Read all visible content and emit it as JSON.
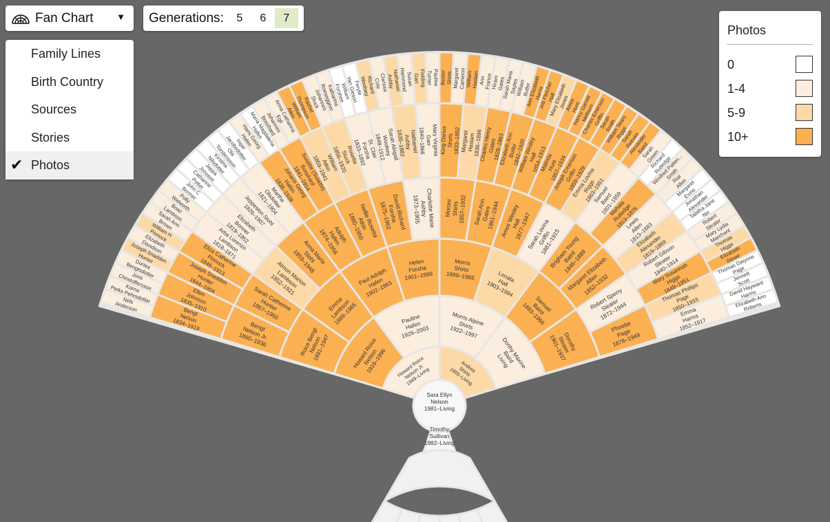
{
  "toolbar": {
    "chart_icon": "fan-chart-icon",
    "chart_label": "Fan Chart",
    "caret": "▼",
    "generations_label": "Generations:",
    "generation_options": [
      "5",
      "6",
      "7"
    ],
    "selected_generation": "7"
  },
  "menu": {
    "items": [
      {
        "label": "Family Lines",
        "active": false
      },
      {
        "label": "Birth Country",
        "active": false
      },
      {
        "label": "Sources",
        "active": false
      },
      {
        "label": "Stories",
        "active": false
      },
      {
        "label": "Photos",
        "active": true
      }
    ],
    "check": "✔"
  },
  "legend": {
    "title": "Photos",
    "items": [
      {
        "label": "0",
        "color": "#ffffff"
      },
      {
        "label": "1-4",
        "color": "#fbeede"
      },
      {
        "label": "5-9",
        "color": "#fcd9a6"
      },
      {
        "label": "10+",
        "color": "#fbb052"
      }
    ]
  },
  "colors": {
    "background": "#676767",
    "empty": "#f1f1f1",
    "separator": "#e8e6e3"
  },
  "fan": {
    "root": {
      "name": "Sara Ellyn\nNelson",
      "dates": "1981–Living"
    },
    "spouse": {
      "name": "Timothy\nSullivan",
      "dates": "1982–Living"
    },
    "rings": [
      [
        {
          "name": "Howard Roice\nNelson Jr.",
          "dates": "1949–Living",
          "photos": 1
        },
        {
          "name": "Andrea\nShirts",
          "dates": "1955–Living",
          "photos": 2
        }
      ],
      [
        {
          "name": "Howard Roice\nNelson",
          "dates": "1916–1996",
          "photos": 3
        },
        {
          "name": "Pauline\nHafen",
          "dates": "1929–2003",
          "photos": 1
        },
        {
          "name": "Morris Alpine\nShirts",
          "dates": "1922–1997",
          "photos": 1
        },
        {
          "name": "Dorthy Maxine\nBaird",
          "dates": "Living",
          "photos": 1
        }
      ],
      [
        {
          "name": "Roice Bengt\nNelson",
          "dates": "1891–1947",
          "photos": 3
        },
        {
          "name": "Emma\nLambson",
          "dates": "1889–1965",
          "photos": 3
        },
        {
          "name": "Paul Adolph\nHafen",
          "dates": "1902–1963",
          "photos": 3
        },
        {
          "name": "Helen\nForsha",
          "dates": "1901–1999",
          "photos": 3
        },
        {
          "name": "Morris\nShirts",
          "dates": "1899–1985",
          "photos": 3
        },
        {
          "name": "Lonata\nHall",
          "dates": "1903–1984",
          "photos": 2
        },
        {
          "name": "Samuel\nBaird",
          "dates": "1883–1966",
          "photos": 3
        },
        {
          "name": "Dorothy\nSleater",
          "dates": "1901–1937",
          "photos": 3
        }
      ],
      [
        {
          "name": "Bengt\nNelson Jr.",
          "dates": "1860–1936",
          "photos": 3
        },
        {
          "name": "Sarah Catherine\nHunter",
          "dates": "1867–1950",
          "photos": 3
        },
        {
          "name": "Almon Marion\nLambson",
          "dates": "1852–1921",
          "photos": 2
        },
        {
          "name": "Anna Maria\nStohl",
          "dates": "1859–1948",
          "photos": 3
        },
        {
          "name": "Adolph\nHafen",
          "dates": "1874–1956",
          "photos": 3
        },
        {
          "name": "Nellie Rosetta\nAtkin",
          "dates": "1880–1950",
          "photos": 3
        },
        {
          "name": "David Richard\nForsha",
          "dates": "1875–1962",
          "photos": 3
        },
        {
          "name": "Charlotte Marie\nAshby",
          "dates": "1873–1905",
          "photos": 1
        },
        {
          "name": "Moroni\nShirts",
          "dates": "1857–1932",
          "photos": 3
        },
        {
          "name": "Sarah Ann\nGates",
          "dates": "1861–1944",
          "photos": 3
        },
        {
          "name": "Amos Wesley\nHall",
          "dates": "1877–1947",
          "photos": 3
        },
        {
          "name": "Sarah Lovina\nGriffin",
          "dates": "1881–1915",
          "photos": 1
        },
        {
          "name": "Brigham Young\nBaird",
          "dates": "1846–1889",
          "photos": 3
        },
        {
          "name": "Margaret Elizabeth\nAllen",
          "dates": "1852–1932",
          "photos": 3
        },
        {
          "name": "Robert Sperry\nSleater",
          "dates": "1872–1944",
          "photos": 1
        },
        {
          "name": "Phoebe\nPage",
          "dates": "1878–1949",
          "photos": 3
        }
      ],
      [
        {
          "name": "Bengt\nNelson",
          "dates": "1834–1919",
          "photos": 3
        },
        {
          "name": "Ellen\nJohnson",
          "dates": "1835–1910",
          "photos": 3
        },
        {
          "name": "Joseph Sneddon\nHunter",
          "dates": "1844–1904",
          "photos": 3
        },
        {
          "name": "Eliza Catherine\nPinnock",
          "dates": "1846–1913",
          "photos": 3
        },
        {
          "name": "Arba Lorenzo\nLambson",
          "dates": "1818–1871",
          "photos": 1
        },
        {
          "name": "Elizabeth\nBonner",
          "dates": "1819–1852",
          "photos": 1
        },
        {
          "name": "Jeppeston Stohl",
          "dates": "1826–1907",
          "photos": 1
        },
        {
          "name": "Martha\nOlsdotter",
          "dates": "1821–1904",
          "photos": 1
        },
        {
          "name": "Johann Georg\nHafen",
          "dates": "1838–1928",
          "photos": 3
        },
        {
          "name": "Susette (Susetta)\nBosshard",
          "dates": "1841–1914",
          "photos": 3
        },
        {
          "name": "William\nAtkin",
          "dates": "1859–1941",
          "photos": 2
        },
        {
          "name": "Rosetta\nStuck",
          "dates": "1856–1920",
          "photos": 2
        },
        {
          "name": "St. Clair\nForsha",
          "dates": "1833–1892",
          "photos": 1
        },
        {
          "name": "Sarah Abigail\nWoolsey",
          "dates": "1848–1912",
          "photos": 1
        },
        {
          "name": "Nathaniel\nAshby",
          "dates": "1835–1882",
          "photos": 2
        },
        {
          "name": "Mary Virginia\nGarr",
          "dates": "1840–1866",
          "photos": 1
        },
        {
          "name": "King Darius\nShirts",
          "dates": "1833–1892",
          "photos": 3
        },
        {
          "name": "Margaret\nHasiam",
          "dates": "1836–1896",
          "photos": 2
        },
        {
          "name": "Charles Henry\nGates",
          "dates": "1828–1863",
          "photos": 3
        },
        {
          "name": "Elizabeth Ann\nButler",
          "dates": "1842–1920",
          "photos": 3
        },
        {
          "name": "William Wesley\nHall",
          "dates": "1854–1913",
          "photos": 3
        },
        {
          "name": "Malinda\nHunt",
          "dates": "1857–1934",
          "photos": 3
        },
        {
          "name": "Joseph Emerson\nGriffin",
          "dates": "1859–1929",
          "photos": 3
        },
        {
          "name": "Emma Lovina\nRiggs",
          "dates": "1863–1951",
          "photos": 2
        },
        {
          "name": "Samuel\nBaird",
          "dates": "1801–1859",
          "photos": 1
        },
        {
          "name": "Mahala\nRutledge",
          "dates": "1813–1876",
          "photos": 3
        },
        {
          "name": "Lewis\nAllen",
          "dates": "1813–1883",
          "photos": 1
        },
        {
          "name": "Elizabeth\nAlexander",
          "dates": "1819–1869",
          "photos": 2
        },
        {
          "name": "Robert Gibson\nSleater",
          "dates": "1840–1914",
          "photos": 1
        },
        {
          "name": "Mary Susannah\nHiggs",
          "dates": "1849–1951",
          "photos": 3
        },
        {
          "name": "Thomas Phillips\nPage",
          "dates": "1850–1933",
          "photos": 2
        },
        {
          "name": "Emma\nHarms",
          "dates": "1852–1917",
          "photos": 1
        }
      ],
      [
        {
          "name": "Nels\nAnderson",
          "photos": 1
        },
        {
          "name": "Karna\nPerks Pehrsdotter",
          "photos": 1
        },
        {
          "name": "Jons\nChristoffersson",
          "photos": 1
        },
        {
          "name": "Dortea\nBengtsdotter",
          "photos": 1
        },
        {
          "name": "Joseph Snadden\nHunter",
          "photos": 2
        },
        {
          "name": "Elizabeth\nDavidson",
          "photos": 1
        },
        {
          "name": "William H\nPinnock",
          "photos": 2
        },
        {
          "name": "Sarah Ann\nBrown",
          "photos": 1
        },
        {
          "name": "Boaz\nLambson",
          "photos": 1
        },
        {
          "name": "Polly\nWalworth",
          "photos": 1
        },
        {
          "name": "John C\nBonner",
          "photos": 0
        },
        {
          "name": "Catharine\nPotter",
          "photos": 0
        },
        {
          "name": "Jeppa\nJonsson",
          "photos": 0
        },
        {
          "name": "Kirstina\nNilsdotter",
          "photos": 0
        },
        {
          "name": "Ola\nTorstensson",
          "photos": 0
        },
        {
          "name": "Ingar\nJacobsdotter",
          "photos": 0
        },
        {
          "name": "Hans Georg\nHafen",
          "photos": 1
        },
        {
          "name": "Maria Magdalena\nHafen",
          "photos": 0
        },
        {
          "name": "Johannes\nBosshard",
          "photos": 1
        },
        {
          "name": "Anna Catharina\nEgli",
          "photos": 1
        },
        {
          "name": "William\nAtkin",
          "photos": 3
        },
        {
          "name": "Rachel\nThompson",
          "photos": 3
        },
        {
          "name": "Johannes\nStuck",
          "photos": 1
        },
        {
          "name": "Katharina\nRoeseggeer",
          "photos": 1
        },
        {
          "name": "William\nForshee",
          "photos": 0
        },
        {
          "name": "Feryte\nVan Gieson",
          "photos": 0
        },
        {
          "name": "Richard\nWoolsey",
          "photos": 2
        },
        {
          "name": "Clarissa\nCole",
          "photos": 1
        },
        {
          "name": "Nathaniel\nAshby",
          "photos": 2
        },
        {
          "name": "Susan\nHammond",
          "photos": 1
        },
        {
          "name": "Fielding\nGarr",
          "photos": 2
        },
        {
          "name": "Pauline\nTurner",
          "photos": 1
        },
        {
          "name": "Bester\nShirts",
          "photos": 3
        },
        {
          "name": "Margaret\nCameron",
          "photos": 1
        },
        {
          "name": "William\nHaslam",
          "photos": 3
        },
        {
          "name": "Ann\nFrance",
          "photos": 1
        },
        {
          "name": "Hiram\nGates",
          "photos": 1
        },
        {
          "name": "Sarah Maria\nSayles",
          "photos": 1
        },
        {
          "name": "William\nButler",
          "photos": 1
        },
        {
          "name": "Ann Elizabeth\nHarris",
          "photos": 3
        },
        {
          "name": "Job Fletcher\nHall",
          "photos": 3
        },
        {
          "name": "Mary Elizabeth\nJones",
          "photos": 2
        },
        {
          "name": "Amos\nHunt",
          "photos": 3
        },
        {
          "name": "Nancy Garrett\nMelburn",
          "photos": 3
        },
        {
          "name": "Charles Emerson\nGriffin",
          "photos": 3
        },
        {
          "name": "Sarah\nSmith",
          "photos": 3
        },
        {
          "name": "William Sears\nRiggs",
          "photos": 3
        },
        {
          "name": "Sarah\nReeves",
          "photos": 3
        },
        {
          "name": "Alexander\nBaird",
          "photos": 3
        },
        {
          "name": "Sarah\nGreen",
          "photos": 1
        },
        {
          "name": "Richard\nRutledge",
          "photos": 0
        },
        {
          "name": "Winifred Patien...\nSmith",
          "photos": 1
        },
        {
          "name": "Rial\nAllen",
          "photos": 1
        },
        {
          "name": "Margaret\nEvins",
          "photos": 0
        },
        {
          "name": "Jonathan\nAlexander",
          "photos": 0
        },
        {
          "name": "Tabitha Jane\nNix",
          "photos": 0
        },
        {
          "name": "Robert\nSleater",
          "photos": 1
        },
        {
          "name": "Mary Lydia\nMarchant",
          "photos": 1
        },
        {
          "name": "Thomas\nHiggs",
          "photos": 2
        },
        {
          "name": "Elizabeth\nStowe",
          "photos": 3
        },
        {
          "name": "Thomas Gwynne\nPage",
          "photos": 0
        },
        {
          "name": "Jennett\nScott",
          "photos": 0
        },
        {
          "name": "David Hayward\nHarms",
          "photos": 0
        },
        {
          "name": "Elizabeth Ann\nRoberts",
          "photos": 0
        }
      ]
    ]
  }
}
